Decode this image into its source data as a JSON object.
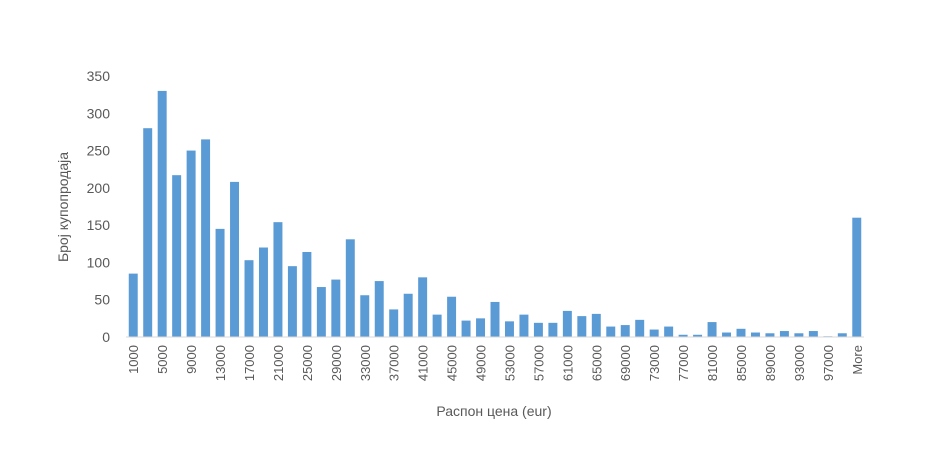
{
  "chart_data": {
    "type": "bar",
    "title": "",
    "xlabel": "Распон цена (eur)",
    "ylabel": "Број купопродаја",
    "ylim": [
      0,
      350
    ],
    "yticks": [
      0,
      50,
      100,
      150,
      200,
      250,
      300,
      350
    ],
    "grid": false,
    "color": "#5B9BD5",
    "categories": [
      "1000",
      "3000",
      "5000",
      "7000",
      "9000",
      "11000",
      "13000",
      "15000",
      "17000",
      "19000",
      "21000",
      "23000",
      "25000",
      "27000",
      "29000",
      "31000",
      "33000",
      "35000",
      "37000",
      "39000",
      "41000",
      "43000",
      "45000",
      "47000",
      "49000",
      "51000",
      "53000",
      "55000",
      "57000",
      "59000",
      "61000",
      "63000",
      "65000",
      "67000",
      "69000",
      "71000",
      "73000",
      "75000",
      "77000",
      "79000",
      "81000",
      "83000",
      "85000",
      "87000",
      "89000",
      "91000",
      "93000",
      "95000",
      "97000",
      "99000",
      "More"
    ],
    "tick_labels_shown": [
      "1000",
      "5000",
      "9000",
      "13000",
      "17000",
      "21000",
      "25000",
      "29000",
      "33000",
      "37000",
      "41000",
      "45000",
      "49000",
      "53000",
      "57000",
      "61000",
      "65000",
      "69000",
      "73000",
      "77000",
      "81000",
      "85000",
      "89000",
      "93000",
      "97000",
      "More"
    ],
    "values": [
      85,
      280,
      330,
      217,
      250,
      265,
      145,
      208,
      103,
      120,
      154,
      95,
      114,
      67,
      77,
      131,
      56,
      75,
      37,
      58,
      80,
      30,
      54,
      22,
      25,
      47,
      21,
      30,
      19,
      19,
      35,
      28,
      31,
      14,
      16,
      23,
      10,
      14,
      3,
      3,
      20,
      6,
      11,
      6,
      5,
      8,
      5,
      8,
      1,
      5,
      160
    ]
  }
}
